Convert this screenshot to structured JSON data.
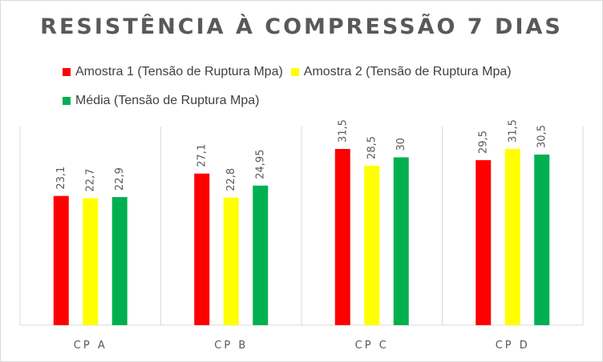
{
  "chart_data": {
    "type": "bar",
    "title": "RESISTÊNCIA À COMPRESSÃO 7 DIAS",
    "categories": [
      "CP A",
      "CP B",
      "CP C",
      "CP D"
    ],
    "series": [
      {
        "name": "Amostra 1 (Tensão de  Ruptura Mpa)",
        "color": "#ff0000",
        "values": [
          23.1,
          27.1,
          31.5,
          29.5
        ],
        "labels": [
          "23,1",
          "27,1",
          "31,5",
          "29,5"
        ]
      },
      {
        "name": "Amostra 2  (Tensão de  Ruptura Mpa)",
        "color": "#ffff00",
        "values": [
          22.7,
          22.8,
          28.5,
          31.5
        ],
        "labels": [
          "22,7",
          "22,8",
          "28,5",
          "31,5"
        ]
      },
      {
        "name": "Média (Tensão de  Ruptura Mpa)",
        "color": "#00b050",
        "values": [
          22.9,
          24.95,
          30,
          30.5
        ],
        "labels": [
          "22,9",
          "24,95",
          "30",
          "30,5"
        ]
      }
    ],
    "ylim": [
      0,
      32
    ],
    "grid": "vertical category separators",
    "legend_position": "top-left",
    "data_labels": "rotated above bars"
  }
}
